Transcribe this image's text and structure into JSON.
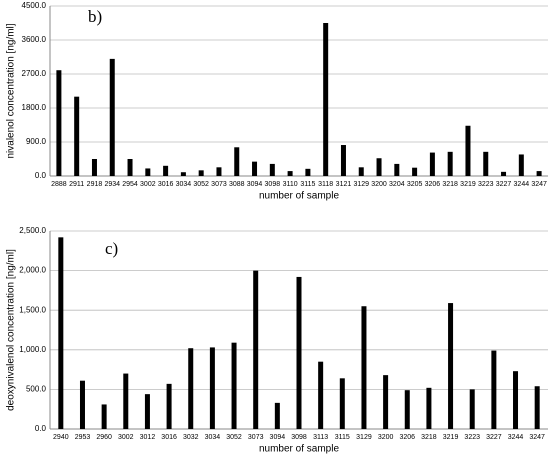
{
  "chart_data": [
    {
      "type": "bar",
      "annotation": "b)",
      "x_label": "number of sample",
      "y_label": "nivalenol concentration [ng/ml]",
      "categories": [
        "2888",
        "2911",
        "2918",
        "2934",
        "2954",
        "3002",
        "3016",
        "3034",
        "3052",
        "3073",
        "3088",
        "3094",
        "3098",
        "3110",
        "3115",
        "3118",
        "3121",
        "3129",
        "3200",
        "3204",
        "3205",
        "3206",
        "3218",
        "3219",
        "3223",
        "3227",
        "3244",
        "3247"
      ],
      "values": [
        2800,
        2100,
        450,
        3100,
        450,
        200,
        270,
        100,
        150,
        230,
        760,
        380,
        320,
        130,
        190,
        4050,
        820,
        230,
        470,
        320,
        220,
        620,
        640,
        1330,
        640,
        110,
        570,
        130
      ],
      "color": "#000000",
      "ylim": [
        0,
        4500
      ],
      "yticks": [
        {
          "value": 0,
          "label": "0.0"
        },
        {
          "value": 900,
          "label": "900.0"
        },
        {
          "value": 1800,
          "label": "1800.0"
        },
        {
          "value": 2700,
          "label": "2700.0"
        },
        {
          "value": 3600,
          "label": "3600.0"
        },
        {
          "value": 4500,
          "label": "4500.0"
        }
      ],
      "grid": true
    },
    {
      "type": "bar",
      "annotation": "c)",
      "x_label": "number of sample",
      "y_label": "deoxynivalenol concentration [ng/ml]",
      "categories": [
        "2940",
        "2953",
        "2960",
        "3002",
        "3012",
        "3016",
        "3032",
        "3034",
        "3052",
        "3073",
        "3094",
        "3098",
        "3113",
        "3115",
        "3129",
        "3200",
        "3206",
        "3218",
        "3219",
        "3223",
        "3227",
        "3244",
        "3247"
      ],
      "values": [
        2420,
        610,
        310,
        700,
        440,
        570,
        1020,
        1030,
        1090,
        2000,
        330,
        1920,
        850,
        640,
        1550,
        680,
        490,
        520,
        1590,
        500,
        990,
        730,
        540
      ],
      "color": "#000000",
      "ylim": [
        0,
        2500
      ],
      "yticks": [
        {
          "value": 0,
          "label": "0.0"
        },
        {
          "value": 500,
          "label": "500.0"
        },
        {
          "value": 1000,
          "label": "1,000.0"
        },
        {
          "value": 1500,
          "label": "1,500.0"
        },
        {
          "value": 2000,
          "label": "2,000.0"
        },
        {
          "value": 2500,
          "label": "2,500.0"
        }
      ],
      "grid": true
    }
  ]
}
